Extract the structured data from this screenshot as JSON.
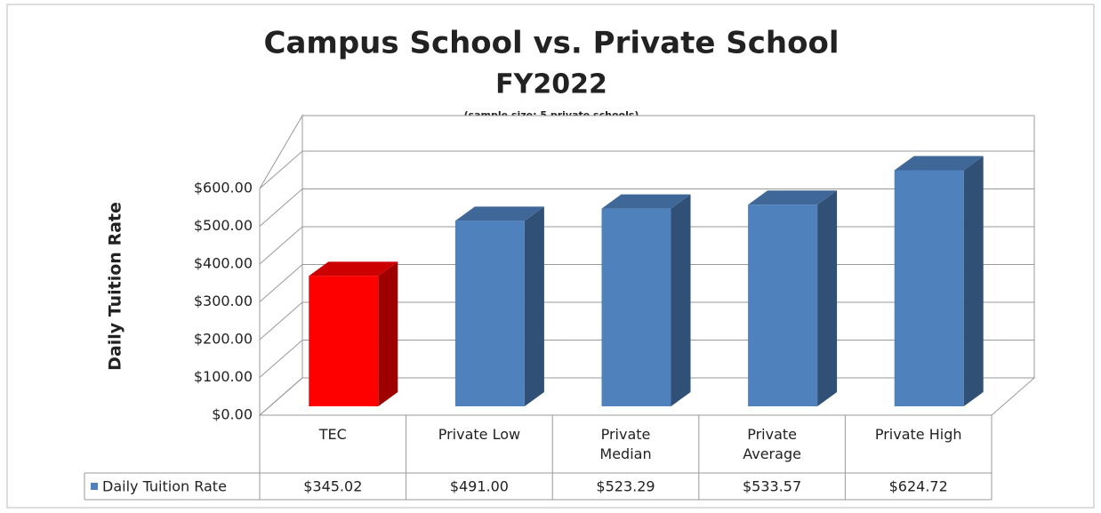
{
  "chart_data": {
    "type": "bar3d",
    "title": [
      "Campus School vs. Private School",
      "FY2022"
    ],
    "subtitle": "(sample size: 5 private schools)",
    "y_label": "Daily Tuition Rate",
    "categories": [
      "TEC",
      "Private Low",
      "Private Median",
      "Private Average",
      "Private High"
    ],
    "series": [
      {
        "name": "Daily Tuition Rate",
        "color": "#4f81bd",
        "point_colors": [
          "#ff0000",
          "#4f81bd",
          "#4f81bd",
          "#4f81bd",
          "#4f81bd"
        ],
        "values": [
          345.02,
          491.0,
          523.29,
          533.57,
          624.72
        ],
        "value_labels": [
          "$345.02",
          "$491.00",
          "$523.29",
          "$533.57",
          "$624.72"
        ]
      }
    ],
    "ylim": [
      0,
      600
    ],
    "yticks": [
      {
        "value": 0,
        "label": "$0.00"
      },
      {
        "value": 100,
        "label": "$100.00"
      },
      {
        "value": 200,
        "label": "$200.00"
      },
      {
        "value": 300,
        "label": "$300.00"
      },
      {
        "value": 400,
        "label": "$400.00"
      },
      {
        "value": 500,
        "label": "$500.00"
      },
      {
        "value": 600,
        "label": "$600.00"
      }
    ],
    "grid": true,
    "data_table": true
  }
}
